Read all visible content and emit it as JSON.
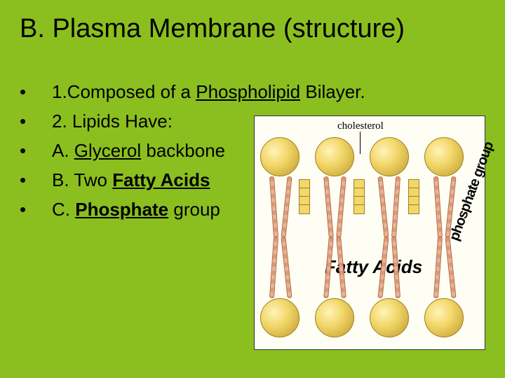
{
  "title": "B. Plasma Membrane (structure)",
  "bullets": [
    {
      "pre": "1.Composed of a ",
      "u": "Phospholipid",
      "post": " Bilayer."
    },
    {
      "pre": "2. Lipids Have:",
      "u": "",
      "post": ""
    },
    {
      "pre": "A. ",
      "u": "Glycerol",
      "post": " backbone"
    },
    {
      "pre": "B. Two ",
      "u": "Fatty Acids",
      "post": ""
    },
    {
      "pre": "C. ",
      "u": "Phosphate",
      "post": " group"
    }
  ],
  "diagram": {
    "label_cholesterol": "cholesterol",
    "label_phosphate": "phosphate group",
    "label_fatty": "Fatty Acids",
    "colors": {
      "head_light": "#fff4b8",
      "head_mid": "#f2d76a",
      "head_dark": "#b8962f",
      "tail": "#d89b7a",
      "background": "#fffef4"
    }
  },
  "slide_bg": "#8bbf1f"
}
